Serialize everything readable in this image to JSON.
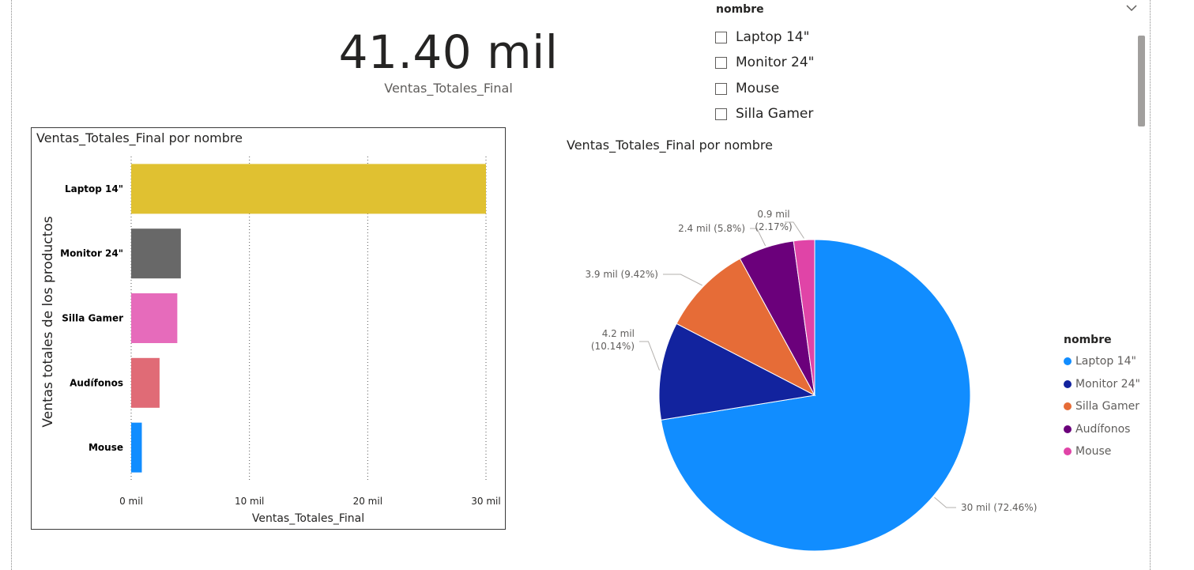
{
  "kpi": {
    "value": "41.40 mil",
    "label": "Ventas_Totales_Final"
  },
  "slicer": {
    "header": "nombre",
    "items": [
      "Laptop 14\"",
      "Monitor 24\"",
      "Mouse",
      "Silla Gamer"
    ]
  },
  "chart_data": [
    {
      "type": "bar",
      "title": "Ventas_Totales_Final por nombre",
      "xlabel": "Ventas_Totales_Final",
      "ylabel": "Ventas totales de los productos",
      "categories": [
        "Laptop 14\"",
        "Monitor 24\"",
        "Silla Gamer",
        "Audífonos",
        "Mouse"
      ],
      "values": [
        30.0,
        4.2,
        3.9,
        2.4,
        0.9
      ],
      "colors": [
        "#e0c131",
        "#686868",
        "#e66bbb",
        "#e06b76",
        "#118dff"
      ],
      "xlim": [
        0,
        30
      ],
      "ticks": [
        "0 mil",
        "10 mil",
        "20 mil",
        "30 mil"
      ],
      "tick_values": [
        0,
        10,
        20,
        30
      ],
      "grid": true
    },
    {
      "type": "pie",
      "title": "Ventas_Totales_Final por nombre",
      "legend_title": "nombre",
      "legend_position": "right",
      "categories": [
        "Laptop 14\"",
        "Monitor 24\"",
        "Silla Gamer",
        "Audífonos",
        "Mouse"
      ],
      "values": [
        30.0,
        4.2,
        3.9,
        2.4,
        0.9
      ],
      "percentages": [
        72.46,
        10.14,
        9.42,
        5.8,
        2.17
      ],
      "colors": [
        "#118dff",
        "#12239e",
        "#e66c37",
        "#6b007b",
        "#e044a7"
      ],
      "data_labels": [
        [
          "30 mil (72.46%)"
        ],
        [
          "4.2 mil",
          "(10.14%)"
        ],
        [
          "3.9 mil (9.42%)"
        ],
        [
          "2.4 mil (5.8%)"
        ],
        [
          "0.9 mil",
          "(2.17%)"
        ]
      ]
    }
  ]
}
